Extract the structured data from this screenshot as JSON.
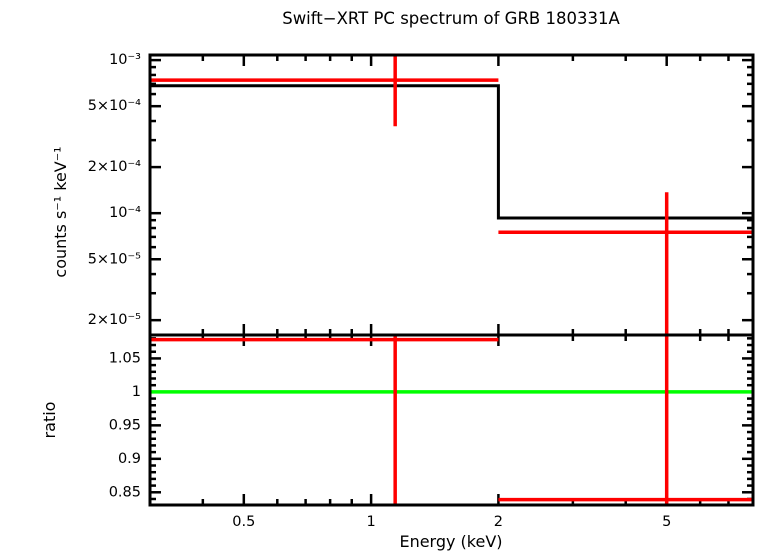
{
  "meta": {
    "background_color": "#ffffff",
    "frame_color": "#000000",
    "data_color": "#ff0000",
    "model_color": "#000000",
    "reference_color": "#00ff00"
  },
  "chart_data": {
    "type": "line",
    "subtype": "xspec-spectrum-with-ratio",
    "title": "Swift−XRT PC spectrum of GRB 180331A",
    "xlabel": "Energy (keV)",
    "xscale": "log",
    "xlim": [
      0.3,
      8.0
    ],
    "xticks": {
      "major": [
        0.5,
        1,
        2,
        5
      ],
      "labels": [
        "0.5",
        "1",
        "2",
        "5"
      ],
      "minor": [
        0.4,
        0.6,
        0.7,
        0.8,
        0.9,
        3,
        4,
        6,
        7
      ]
    },
    "legend": "none",
    "grid": false,
    "panels": [
      {
        "name": "spectrum",
        "ylabel": "counts s⁻¹ keV⁻¹",
        "yscale": "log",
        "ylim": [
          1.6e-05,
          0.00108
        ],
        "yticks": {
          "major": [
            0.001,
            0.0005,
            0.0002,
            0.0001,
            5e-05,
            2e-05
          ],
          "labels": [
            "10⁻³",
            "5×10⁻⁴",
            "2×10⁻⁴",
            "10⁻⁴",
            "5×10⁻⁵",
            "2×10⁻⁵"
          ],
          "minor": [
            0.0009,
            0.0008,
            0.0007,
            0.0006,
            0.0004,
            0.0003,
            9e-05,
            8e-05,
            7e-05,
            6e-05,
            4e-05,
            3e-05
          ]
        },
        "model_color": "#000000",
        "data_color": "#ff0000",
        "model_bins": [
          {
            "x0": 0.3,
            "x1": 2.0,
            "y": 0.00068
          },
          {
            "x0": 2.0,
            "x1": 8.0,
            "y": 9.3e-05
          }
        ],
        "points": [
          {
            "x": 1.14,
            "x0": 0.3,
            "x1": 2.0,
            "y": 0.00074,
            "y_lo": 0.00037,
            "y_hi": 0.0012
          },
          {
            "x": 5.0,
            "x0": 2.0,
            "x1": 8.0,
            "y": 7.5e-05,
            "y_lo": 8e-06,
            "y_hi": 0.000137
          }
        ]
      },
      {
        "name": "ratio",
        "ylabel": "ratio",
        "yscale": "linear",
        "ylim": [
          0.831,
          1.085
        ],
        "yticks": {
          "major": [
            1.05,
            1,
            0.95,
            0.9,
            0.85
          ],
          "labels": [
            "1.05",
            "1",
            "0.95",
            "0.9",
            "0.85"
          ],
          "minor": [
            1.08,
            1.07,
            1.06,
            1.04,
            1.03,
            1.02,
            1.01,
            0.99,
            0.98,
            0.97,
            0.96,
            0.94,
            0.93,
            0.92,
            0.91,
            0.89,
            0.88,
            0.87,
            0.86,
            0.84
          ]
        },
        "data_color": "#ff0000",
        "reference_line": {
          "y": 1.0,
          "color": "#00ff00"
        },
        "points": [
          {
            "x": 1.14,
            "x0": 0.3,
            "x1": 2.0,
            "y": 1.078,
            "y_lo": 0.7,
            "y_hi": 1.2
          },
          {
            "x": 5.0,
            "x0": 2.0,
            "x1": 8.0,
            "y": 0.839,
            "y_lo": 0.5,
            "y_hi": 1.3
          }
        ]
      }
    ]
  }
}
